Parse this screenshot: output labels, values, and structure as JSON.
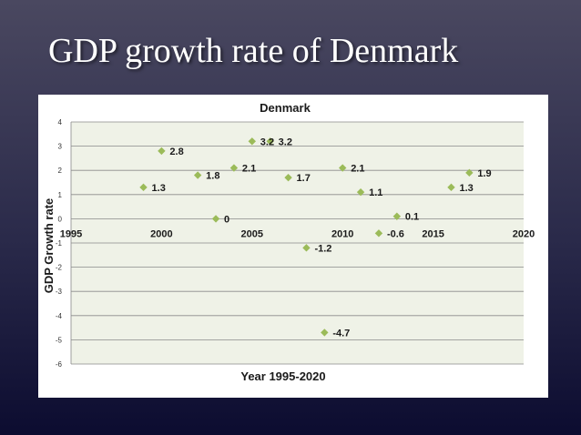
{
  "slide": {
    "title": "GDP growth rate of Denmark"
  },
  "chart_data": {
    "type": "scatter",
    "title": "Denmark",
    "xlabel": "Year 1995-2020",
    "ylabel": "GDP Growth rate",
    "xlim": [
      1995,
      2020
    ],
    "ylim": [
      -6,
      4
    ],
    "x_ticks": [
      "1995",
      "2000",
      "2005",
      "2010",
      "2015",
      "2020"
    ],
    "y_ticks": [
      "4",
      "3",
      "2",
      "1",
      "0",
      "-1",
      "-2",
      "-3",
      "-4",
      "-5",
      "-6"
    ],
    "grid": true,
    "legend": "none",
    "marker_color": "#9bbb59",
    "plot_background": "#eff2e7",
    "series": [
      {
        "x": [
          1999,
          2000,
          2002,
          2003,
          2004,
          2005,
          2006,
          2007,
          2008,
          2009,
          2010,
          2011,
          2012,
          2013,
          2016,
          2017
        ],
        "y": [
          1.3,
          2.8,
          1.8,
          0,
          2.1,
          3.2,
          3.2,
          1.7,
          -1.2,
          -4.7,
          2.1,
          1.1,
          -0.6,
          0.1,
          1.3,
          1.9
        ],
        "labels": [
          "1.3",
          "2.8",
          "1.8",
          "0",
          "2.1",
          "3.2",
          "3.2",
          "1.7",
          "-1.2",
          "-4.7",
          "2.1",
          "1.1",
          "-0.6",
          "0.1",
          "1.3",
          "1.9"
        ]
      }
    ]
  }
}
